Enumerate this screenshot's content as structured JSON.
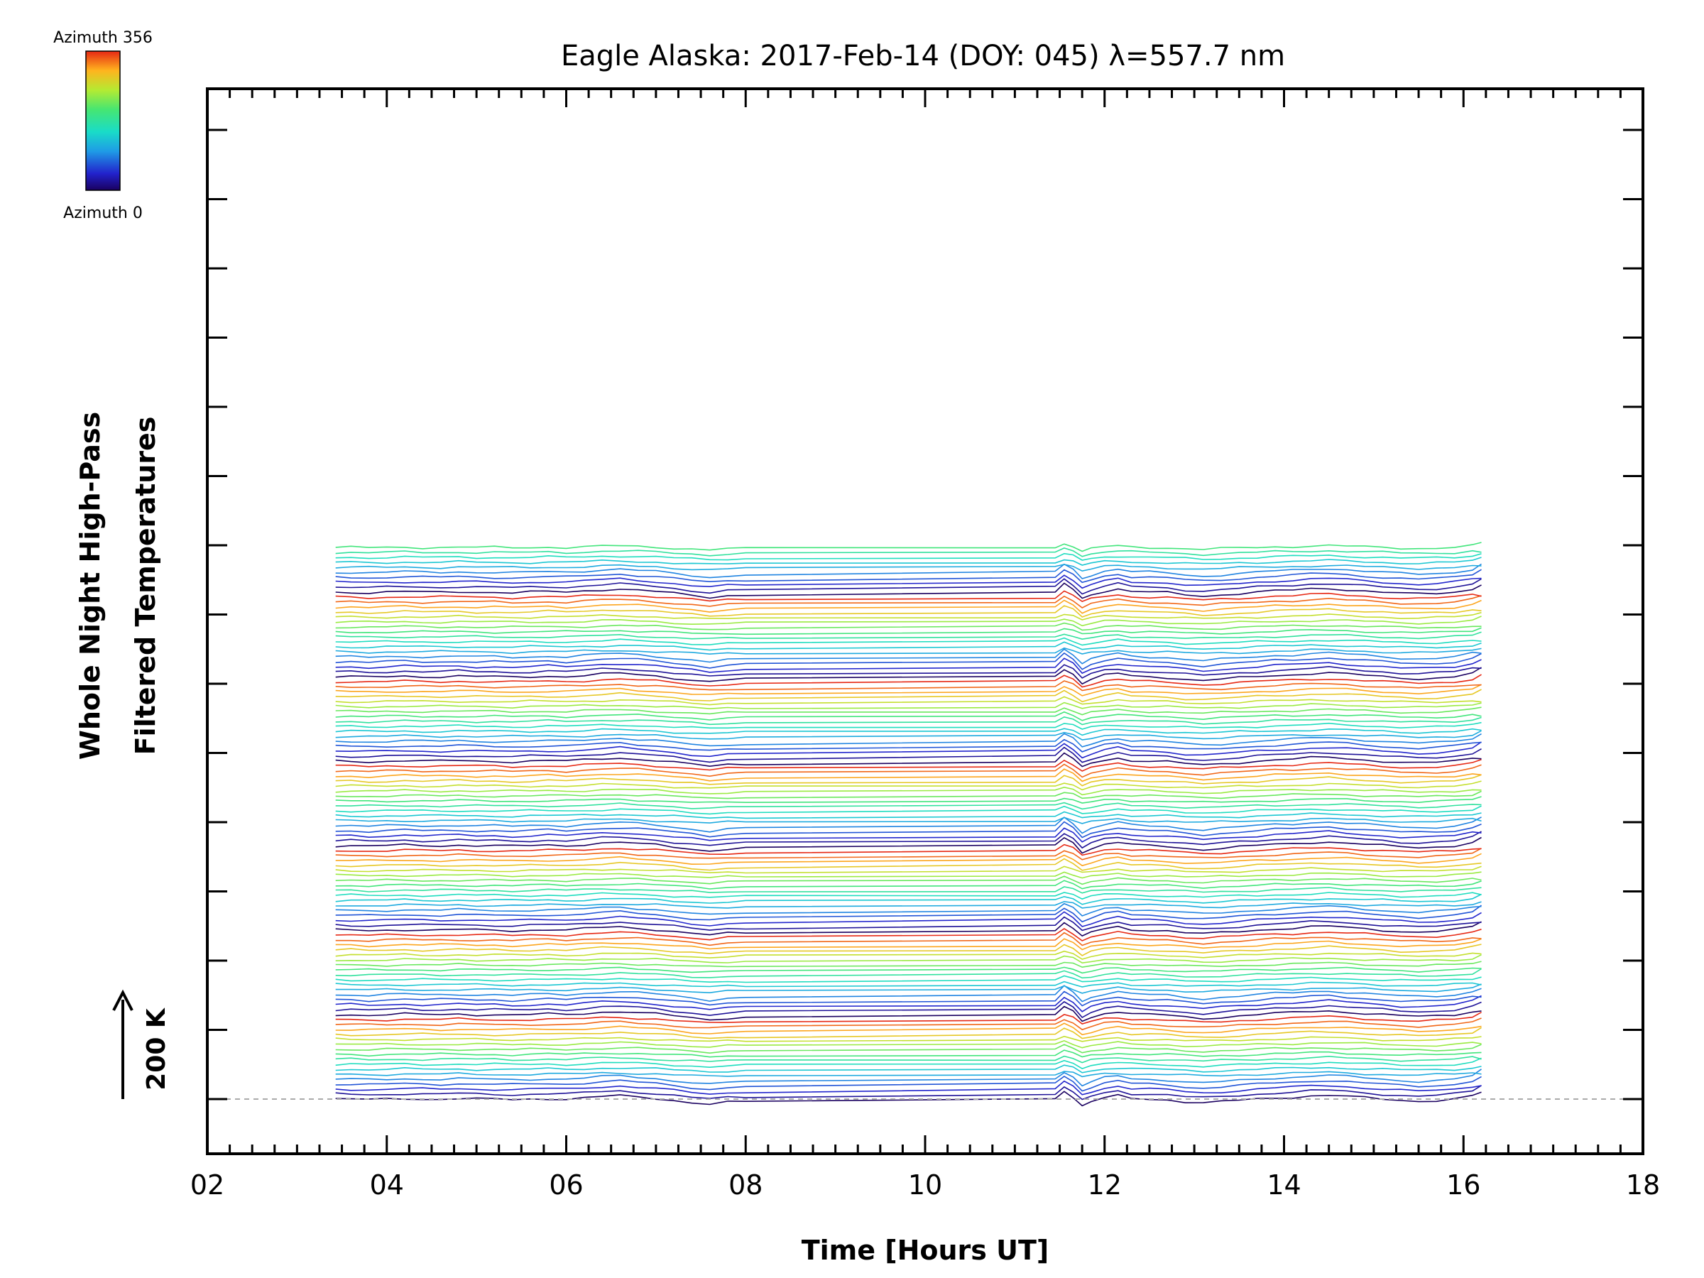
{
  "chart_data": {
    "type": "line",
    "title": "Eagle Alaska: 2017-Feb-14 (DOY: 045) λ=557.7 nm",
    "xlabel": "Time [Hours UT]",
    "ylabel_line1": "Whole Night High-Pass",
    "ylabel_line2": "Filtered Temperatures",
    "xlim": [
      2,
      18
    ],
    "x_ticks": [
      "02",
      "04",
      "06",
      "08",
      "10",
      "12",
      "14",
      "16",
      "18"
    ],
    "x_tick_values": [
      2,
      4,
      6,
      8,
      10,
      12,
      14,
      16,
      18
    ],
    "x_minor_step": 0.25,
    "y_major_ticks": 15,
    "grid": false,
    "series_count": 112,
    "series_spacing_K": 10,
    "stacked_offset": true,
    "series_period": 17,
    "scale_bar": {
      "label": "200 K",
      "value_K": 200
    },
    "colorbar": {
      "top_label": "Azimuth 356",
      "bottom_label": "Azimuth 0",
      "min": 0,
      "max": 356,
      "colormap": "rainbow"
    },
    "baseline": {
      "style": "dashed",
      "color": "#aaaaaa"
    },
    "x": [
      3.43,
      3.6,
      3.8,
      4.0,
      4.2,
      4.4,
      4.6,
      4.8,
      5.0,
      5.2,
      5.4,
      5.6,
      5.8,
      6.0,
      6.2,
      6.4,
      6.6,
      6.8,
      7.0,
      7.2,
      7.4,
      7.6,
      7.8,
      8.0,
      11.45,
      11.55,
      11.65,
      11.75,
      11.85,
      12.0,
      12.15,
      12.3,
      12.5,
      12.7,
      12.9,
      13.1,
      13.3,
      13.5,
      13.7,
      13.9,
      14.1,
      14.3,
      14.5,
      14.7,
      14.9,
      15.1,
      15.3,
      15.5,
      15.7,
      15.9,
      16.1,
      16.2
    ],
    "base_profile_K": [
      0,
      0,
      -1,
      0,
      1,
      0,
      0,
      1,
      0,
      0,
      -1,
      0,
      1,
      0,
      2,
      4,
      5,
      3,
      1,
      -2,
      -5,
      -8,
      -5,
      -4,
      0,
      12,
      4,
      -10,
      -4,
      2,
      5,
      1,
      0,
      -1,
      -4,
      -6,
      -4,
      -2,
      0,
      2,
      3,
      5,
      6,
      4,
      2,
      0,
      -2,
      -3,
      -2,
      0,
      5,
      10
    ]
  }
}
